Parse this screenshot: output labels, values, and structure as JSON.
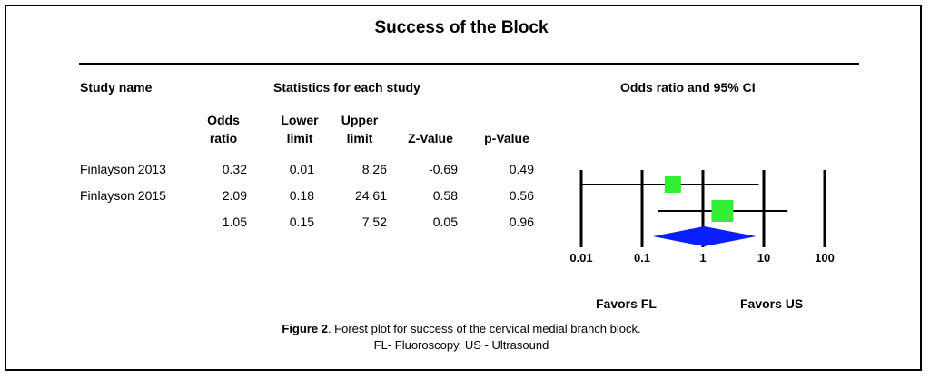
{
  "title": "Success of the Block",
  "headers": {
    "study_name": "Study name",
    "statistics": "Statistics for each study",
    "plot": "Odds ratio and 95% CI"
  },
  "columns": [
    {
      "line1": "Odds",
      "line2": "ratio"
    },
    {
      "line1": "Lower",
      "line2": "limit"
    },
    {
      "line1": "Upper",
      "line2": "limit"
    },
    {
      "line1": "",
      "line2": "Z-Value"
    },
    {
      "line1": "",
      "line2": "p-Value"
    }
  ],
  "rows": [
    {
      "name": "Finlayson 2013",
      "odds": "0.32",
      "lower": "0.01",
      "upper": "8.26",
      "z": "-0.69",
      "p": "0.49"
    },
    {
      "name": "Finlayson 2015",
      "odds": "2.09",
      "lower": "0.18",
      "upper": "24.61",
      "z": "0.58",
      "p": "0.56"
    },
    {
      "name": "",
      "odds": "1.05",
      "lower": "0.15",
      "upper": "7.52",
      "z": "0.05",
      "p": "0.96"
    }
  ],
  "axis_ticks": [
    "0.01",
    "0.1",
    "1",
    "10",
    "100"
  ],
  "favors": {
    "left": "Favors FL",
    "right": "Favors US"
  },
  "caption": {
    "label": "Figure 2",
    "text": ". Forest plot for success of the cervical medial branch block.",
    "line2": "FL- Fluoroscopy, US - Ultrasound"
  },
  "colors": {
    "study_marker": "#33ee33",
    "summary_diamond": "#0a1eff"
  },
  "chart_data": {
    "type": "forest",
    "title": "Odds ratio and 95% CI",
    "x_scale": "log",
    "xlim": [
      0.01,
      100
    ],
    "studies": [
      {
        "name": "Finlayson 2013",
        "odds_ratio": 0.32,
        "lower": 0.01,
        "upper": 8.26
      },
      {
        "name": "Finlayson 2015",
        "odds_ratio": 2.09,
        "lower": 0.18,
        "upper": 24.61
      }
    ],
    "summary": {
      "odds_ratio": 1.05,
      "lower": 0.15,
      "upper": 7.52
    }
  }
}
